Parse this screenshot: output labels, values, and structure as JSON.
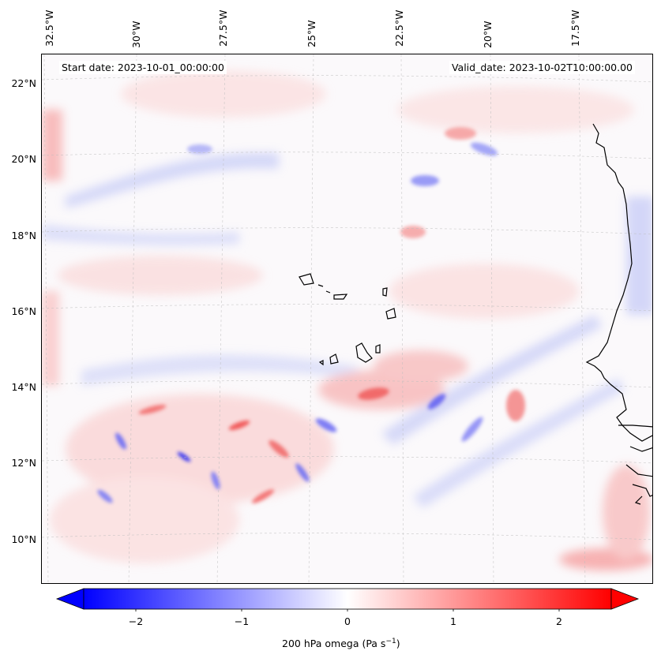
{
  "map": {
    "start_date_text": "Start date: 2023-10-01_00:00:00",
    "valid_date_text": "Valid_date: 2023-10-02T10:00:00.00",
    "lon_labels": [
      "32.5°W",
      "30°W",
      "27.5°W",
      "25°W",
      "22.5°W",
      "20°W",
      "17.5°W"
    ],
    "lat_labels": [
      "22°N",
      "20°N",
      "18°N",
      "16°N",
      "14°N",
      "12°N",
      "10°N"
    ],
    "colormap": "bwr",
    "colors": {
      "negative": "#0000ff",
      "zero": "#ffffff",
      "positive": "#ff0000",
      "coastline": "#000000"
    }
  },
  "colorbar": {
    "ticks": [
      "−2",
      "−1",
      "0",
      "1",
      "2"
    ],
    "tick_values": [
      -2,
      -1,
      0,
      1,
      2
    ],
    "range": [
      -2.5,
      2.5
    ],
    "extend": "both",
    "label_main": "200 hPa omega (Pa s",
    "label_sup": "−1",
    "label_end": ")"
  }
}
